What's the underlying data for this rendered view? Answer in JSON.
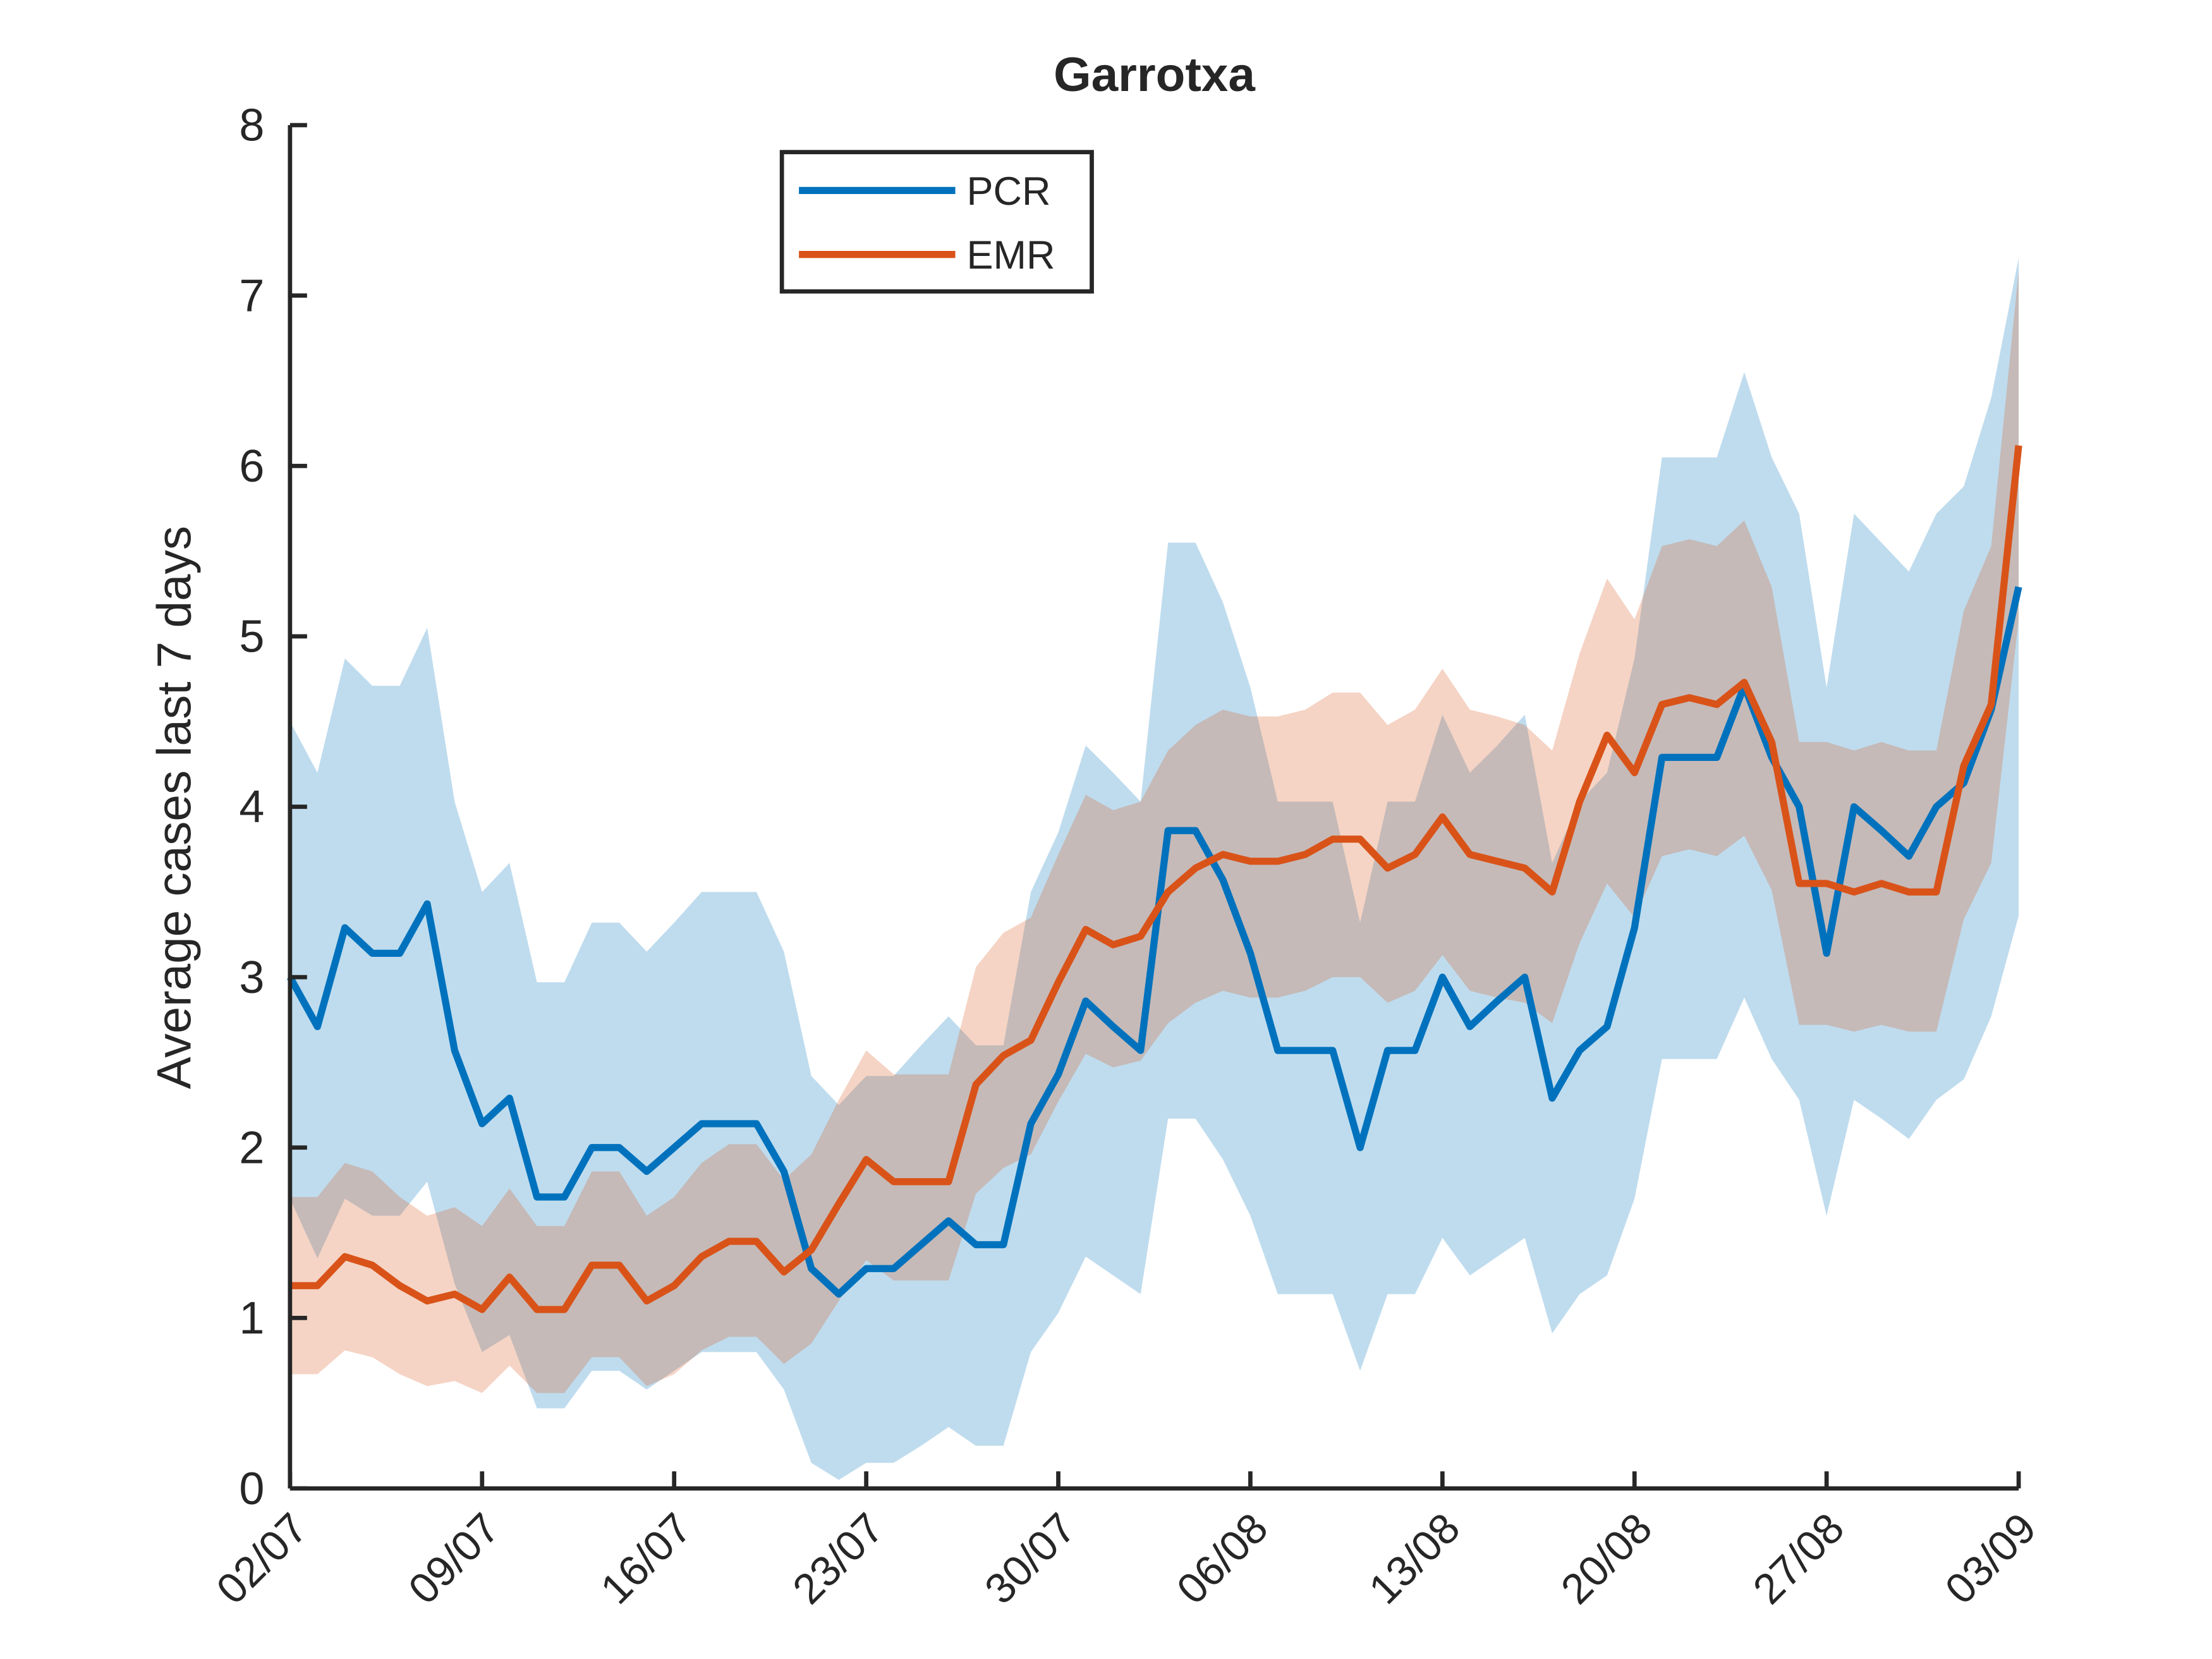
{
  "chart_data": {
    "type": "line",
    "title": "Garrotxa",
    "y_label": "Average cases last 7 days",
    "categories": [
      "02/07",
      null,
      null,
      null,
      null,
      null,
      null,
      "09/07",
      null,
      null,
      null,
      null,
      null,
      null,
      "16/07",
      null,
      null,
      null,
      null,
      null,
      null,
      "23/07",
      null,
      null,
      null,
      null,
      null,
      null,
      "30/07",
      null,
      null,
      null,
      null,
      null,
      null,
      "06/08",
      null,
      null,
      null,
      null,
      null,
      null,
      "13/08",
      null,
      null,
      null,
      null,
      null,
      null,
      "20/08",
      null,
      null,
      null,
      null,
      null,
      null,
      "27/08",
      null,
      null,
      null,
      null,
      null,
      null,
      "03/09"
    ],
    "ylim": [
      0,
      8
    ],
    "yticks": [
      0,
      1,
      2,
      3,
      4,
      5,
      6,
      7,
      8
    ],
    "legend": "top",
    "series": [
      {
        "name": "PCR",
        "color": "#0072BD",
        "values": [
          3.0,
          2.71,
          3.29,
          3.14,
          3.14,
          3.43,
          2.57,
          2.14,
          2.29,
          1.71,
          1.71,
          2.0,
          2.0,
          1.86,
          2.0,
          2.14,
          2.14,
          2.14,
          1.86,
          1.29,
          1.14,
          1.29,
          1.29,
          1.43,
          1.57,
          1.43,
          1.43,
          2.14,
          2.43,
          2.86,
          2.71,
          2.57,
          3.86,
          3.86,
          3.57,
          3.14,
          2.57,
          2.57,
          2.57,
          2.0,
          2.57,
          2.57,
          3.0,
          2.71,
          2.86,
          3.0,
          2.29,
          2.57,
          2.71,
          3.29,
          4.29,
          4.29,
          4.29,
          4.71,
          4.29,
          4.0,
          3.14,
          4.0,
          3.86,
          3.71,
          4.0,
          4.14,
          4.57,
          5.29
        ],
        "upper": [
          4.5,
          4.2,
          4.87,
          4.71,
          4.71,
          5.05,
          4.03,
          3.5,
          3.67,
          2.97,
          2.97,
          3.32,
          3.32,
          3.15,
          3.32,
          3.5,
          3.5,
          3.5,
          3.15,
          2.42,
          2.25,
          2.42,
          2.42,
          2.6,
          2.77,
          2.6,
          2.6,
          3.5,
          3.85,
          4.36,
          4.2,
          4.03,
          5.55,
          5.55,
          5.2,
          4.7,
          4.03,
          4.03,
          4.03,
          3.32,
          4.03,
          4.03,
          4.54,
          4.2,
          4.36,
          4.54,
          3.67,
          4.03,
          4.2,
          4.87,
          6.05,
          6.05,
          6.05,
          6.55,
          6.05,
          5.72,
          4.7,
          5.72,
          5.55,
          5.38,
          5.72,
          5.88,
          6.4,
          7.22
        ],
        "lower": [
          1.7,
          1.35,
          1.7,
          1.6,
          1.6,
          1.8,
          1.2,
          0.8,
          0.9,
          0.47,
          0.47,
          0.69,
          0.69,
          0.58,
          0.69,
          0.8,
          0.8,
          0.8,
          0.58,
          0.15,
          0.05,
          0.15,
          0.15,
          0.25,
          0.36,
          0.25,
          0.25,
          0.8,
          1.03,
          1.36,
          1.25,
          1.14,
          2.17,
          2.17,
          1.93,
          1.6,
          1.14,
          1.14,
          1.14,
          0.69,
          1.14,
          1.14,
          1.47,
          1.25,
          1.36,
          1.47,
          0.91,
          1.14,
          1.25,
          1.7,
          2.52,
          2.52,
          2.52,
          2.88,
          2.52,
          2.28,
          1.6,
          2.28,
          2.17,
          2.05,
          2.28,
          2.4,
          2.77,
          3.36
        ]
      },
      {
        "name": "EMR",
        "color": "#D95319",
        "values": [
          1.19,
          1.19,
          1.36,
          1.31,
          1.19,
          1.1,
          1.14,
          1.05,
          1.24,
          1.05,
          1.05,
          1.31,
          1.31,
          1.1,
          1.19,
          1.36,
          1.45,
          1.45,
          1.27,
          1.4,
          1.67,
          1.93,
          1.8,
          1.8,
          1.8,
          2.37,
          2.54,
          2.63,
          2.97,
          3.28,
          3.19,
          3.24,
          3.5,
          3.64,
          3.72,
          3.68,
          3.68,
          3.72,
          3.81,
          3.81,
          3.64,
          3.72,
          3.94,
          3.72,
          3.68,
          3.64,
          3.5,
          4.03,
          4.42,
          4.2,
          4.6,
          4.64,
          4.6,
          4.73,
          4.38,
          3.55,
          3.55,
          3.5,
          3.55,
          3.5,
          3.5,
          4.24,
          4.6,
          6.12
        ],
        "upper": [
          1.71,
          1.71,
          1.91,
          1.86,
          1.71,
          1.6,
          1.65,
          1.54,
          1.76,
          1.54,
          1.54,
          1.86,
          1.86,
          1.6,
          1.71,
          1.91,
          2.02,
          2.02,
          1.81,
          1.96,
          2.28,
          2.57,
          2.43,
          2.43,
          2.43,
          3.06,
          3.26,
          3.35,
          3.72,
          4.07,
          3.98,
          4.03,
          4.33,
          4.48,
          4.57,
          4.53,
          4.53,
          4.57,
          4.67,
          4.67,
          4.48,
          4.57,
          4.81,
          4.57,
          4.53,
          4.48,
          4.33,
          4.9,
          5.34,
          5.1,
          5.53,
          5.57,
          5.53,
          5.68,
          5.29,
          4.38,
          4.38,
          4.33,
          4.38,
          4.33,
          4.33,
          5.15,
          5.53,
          7.15
        ],
        "lower": [
          0.67,
          0.67,
          0.81,
          0.77,
          0.67,
          0.6,
          0.63,
          0.56,
          0.72,
          0.56,
          0.56,
          0.77,
          0.77,
          0.6,
          0.67,
          0.81,
          0.89,
          0.89,
          0.73,
          0.85,
          1.1,
          1.34,
          1.22,
          1.22,
          1.22,
          1.73,
          1.88,
          1.96,
          2.27,
          2.55,
          2.47,
          2.51,
          2.73,
          2.85,
          2.92,
          2.88,
          2.88,
          2.92,
          3.0,
          3.0,
          2.85,
          2.92,
          3.13,
          2.92,
          2.88,
          2.85,
          2.73,
          3.2,
          3.55,
          3.35,
          3.71,
          3.75,
          3.71,
          3.83,
          3.51,
          2.72,
          2.72,
          2.68,
          2.72,
          2.68,
          2.68,
          3.34,
          3.67,
          5.1
        ]
      }
    ]
  }
}
